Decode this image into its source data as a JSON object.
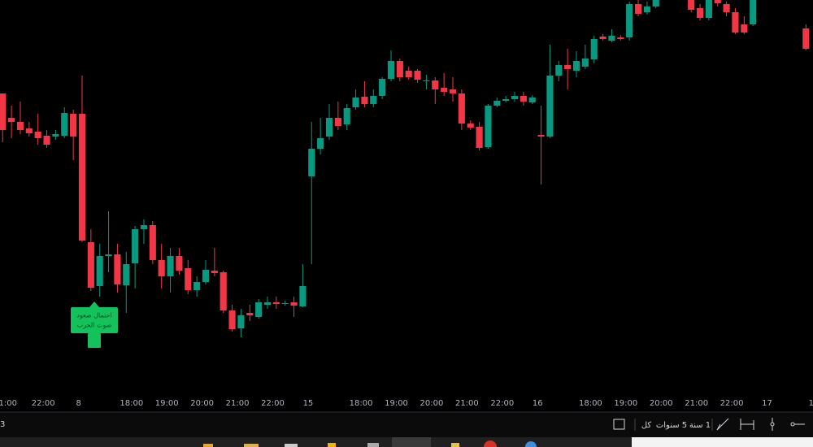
{
  "chart_data": {
    "type": "candlestick",
    "up_color": "#089981",
    "down_color": "#f23645",
    "xlim": [
      -0.9,
      91.2
    ],
    "ylim": [
      15,
      500
    ],
    "xticks": [
      {
        "value": 0,
        "label": "1:00"
      },
      {
        "value": 4,
        "label": "22:00"
      },
      8,
      {
        "value": 14,
        "label": "18:00"
      },
      {
        "value": 18,
        "label": "19:00"
      },
      {
        "value": 22,
        "label": "20:00"
      },
      {
        "value": 26,
        "label": "21:00"
      },
      {
        "value": 30,
        "label": "22:00"
      },
      {
        "value": 34,
        "label": "15"
      },
      {
        "value": 40,
        "label": "18:00"
      },
      {
        "value": 44,
        "label": "19:00"
      },
      {
        "value": 48,
        "label": "20:00"
      },
      {
        "value": 52,
        "label": "21:00"
      },
      {
        "value": 56,
        "label": "22:00"
      },
      {
        "value": 60,
        "label": "16"
      },
      {
        "value": 66,
        "label": "18:00"
      },
      {
        "value": 70,
        "label": "19:00"
      },
      {
        "value": 74,
        "label": "20:00"
      },
      {
        "value": 78,
        "label": "21:00"
      },
      {
        "value": 82,
        "label": "22:00"
      },
      {
        "value": 86,
        "label": "17"
      },
      {
        "value": 91,
        "label": "1"
      }
    ],
    "x": [
      -0.6,
      0.4,
      1.4,
      2.4,
      3.4,
      4.4,
      5.4,
      6.4,
      7.4,
      8.4,
      9.4,
      10.4,
      11.4,
      12.4,
      13.4,
      14.4,
      15.4,
      16.4,
      17.4,
      18.4,
      19.4,
      20.4,
      21.4,
      22.4,
      23.4,
      24.4,
      25.4,
      26.4,
      27.4,
      28.4,
      29.4,
      30.4,
      31.4,
      32.4,
      33.4,
      34.4,
      35.4,
      36.4,
      37.4,
      38.4,
      39.4,
      40.4,
      41.4,
      42.4,
      43.4,
      44.4,
      45.4,
      46.4,
      47.4,
      48.4,
      49.4,
      50.4,
      51.4,
      52.4,
      53.4,
      54.4,
      55.4,
      56.4,
      57.4,
      58.4,
      59.4,
      60.4,
      61.4,
      62.4,
      63.4,
      64.4,
      65.4,
      66.4,
      67.4,
      68.4,
      69.4,
      70.4,
      71.4,
      72.4,
      73.4,
      77.4,
      78.4,
      79.4,
      80.4,
      81.4,
      82.4,
      83.4,
      84.4,
      90.4
    ],
    "open": [
      385,
      355,
      350,
      342,
      338,
      333,
      332,
      333,
      360,
      360,
      202,
      148,
      185,
      187,
      149,
      176,
      218,
      223,
      180,
      160,
      185,
      170,
      143,
      153,
      167,
      165,
      118,
      96,
      115,
      110,
      125,
      128,
      126,
      128,
      123,
      283,
      317,
      332,
      355,
      347,
      368,
      381,
      372,
      382,
      403,
      425,
      413,
      413,
      400,
      401,
      392,
      390,
      385,
      348,
      344,
      319,
      370,
      376,
      378,
      382,
      374,
      334,
      332,
      407,
      420,
      413,
      418,
      427,
      455,
      450,
      454,
      454,
      495,
      485,
      492,
      500,
      490,
      478,
      500,
      495,
      485,
      470,
      470,
      465
    ],
    "high": [
      385,
      370,
      375,
      350,
      360,
      340,
      340,
      368,
      365,
      407,
      218,
      200,
      240,
      200,
      190,
      222,
      230,
      228,
      200,
      195,
      195,
      180,
      160,
      180,
      195,
      167,
      125,
      120,
      125,
      132,
      135,
      135,
      130,
      135,
      175,
      350,
      355,
      372,
      375,
      372,
      390,
      400,
      390,
      405,
      438,
      428,
      418,
      415,
      408,
      405,
      410,
      405,
      390,
      352,
      350,
      372,
      380,
      382,
      387,
      387,
      383,
      370,
      445,
      425,
      440,
      437,
      445,
      456,
      458,
      464,
      457,
      498,
      500,
      498,
      505,
      505,
      495,
      505,
      505,
      498,
      490,
      480,
      505,
      470
    ],
    "low": [
      325,
      330,
      335,
      332,
      322,
      318,
      328,
      330,
      303,
      202,
      142,
      135,
      165,
      140,
      115,
      145,
      200,
      175,
      145,
      140,
      162,
      138,
      135,
      150,
      160,
      115,
      92,
      85,
      105,
      108,
      120,
      120,
      124,
      110,
      122,
      175,
      310,
      328,
      340,
      340,
      365,
      368,
      368,
      378,
      400,
      400,
      402,
      398,
      390,
      372,
      382,
      375,
      340,
      340,
      315,
      317,
      368,
      374,
      375,
      370,
      372,
      273,
      330,
      400,
      390,
      405,
      415,
      422,
      450,
      448,
      450,
      450,
      480,
      482,
      490,
      485,
      475,
      475,
      492,
      480,
      458,
      458,
      468,
      438
    ],
    "close": [
      340,
      350,
      340,
      336,
      330,
      322,
      335,
      361,
      332,
      204,
      146,
      185,
      187,
      150,
      175,
      218,
      223,
      180,
      160,
      185,
      167,
      143,
      153,
      168,
      164,
      118,
      95,
      112,
      112,
      128,
      128,
      126,
      127,
      124,
      148,
      317,
      330,
      355,
      345,
      367,
      380,
      372,
      382,
      403,
      425,
      405,
      405,
      402,
      401,
      390,
      387,
      385,
      348,
      343,
      318,
      370,
      376,
      378,
      382,
      375,
      380,
      332,
      407,
      420,
      415,
      425,
      428,
      452,
      452,
      456,
      452,
      495,
      483,
      492,
      500,
      488,
      478,
      500,
      496,
      485,
      460,
      460,
      500,
      440
    ],
    "annotation": {
      "lines": [
        "احتمال صعود",
        "صوت الحرب"
      ]
    }
  },
  "toolbar": {
    "left": "3",
    "ranges": [
      "كل",
      "5 سنوات",
      "1 سنة"
    ]
  }
}
